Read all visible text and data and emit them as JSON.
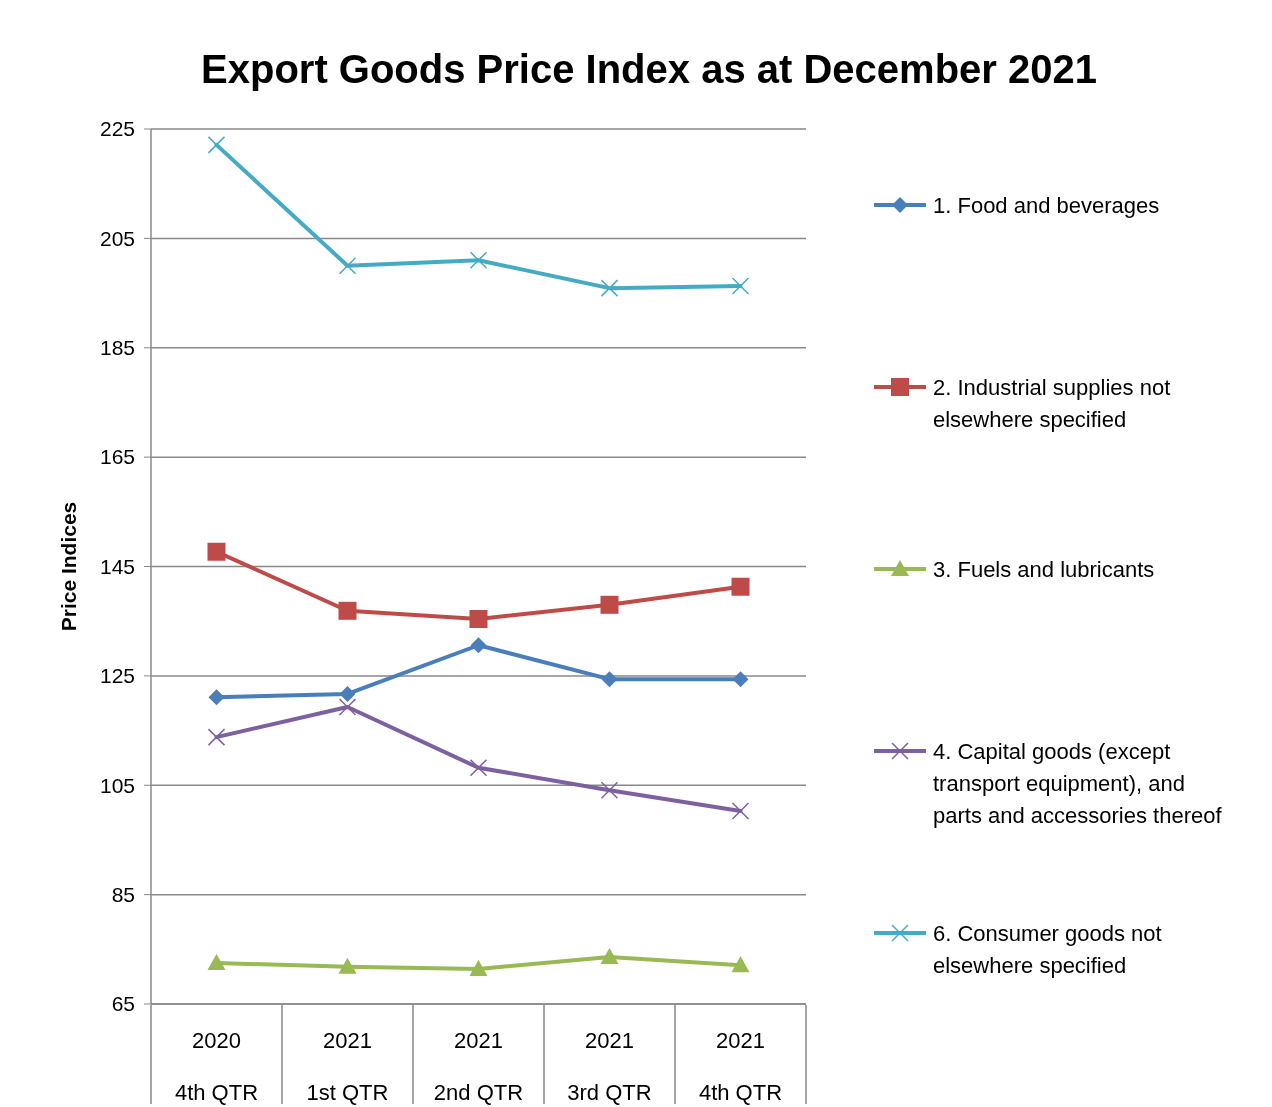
{
  "chart_data": {
    "type": "line",
    "title": "Export Goods Price Index as at December 2021",
    "ylabel": "Price Indices",
    "categories": [
      "2020\n4th QTR",
      "2021\n1st QTR",
      "2021\n2nd QTR",
      "2021\n3rd QTR",
      "2021\n4th QTR"
    ],
    "series": [
      {
        "name": "1. Food and beverages",
        "color": "#4a7ebb",
        "marker": "diamond",
        "values": [
          121.1,
          121.7,
          130.6,
          124.4,
          124.4
        ]
      },
      {
        "name": "2. Industrial supplies not elsewhere specified",
        "color": "#be4b48",
        "marker": "square",
        "values": [
          147.7,
          136.9,
          135.4,
          138.0,
          141.3
        ]
      },
      {
        "name": "3. Fuels and lubricants",
        "color": "#98b954",
        "marker": "triangle",
        "values": [
          72.5,
          71.8,
          71.4,
          73.6,
          72.1
        ]
      },
      {
        "name": "4. Capital goods (except transport equipment), and parts and accessories thereof",
        "color": "#7d60a0",
        "marker": "cross",
        "values": [
          113.8,
          119.3,
          108.2,
          104.1,
          100.3
        ]
      },
      {
        "name": "6. Consumer goods not elsewhere specified",
        "color": "#46aac5",
        "marker": "cross",
        "values": [
          222.1,
          200.0,
          201.0,
          195.9,
          196.3
        ]
      }
    ],
    "ylim": [
      65,
      225
    ],
    "yticks": [
      65,
      85,
      105,
      125,
      145,
      165,
      185,
      205,
      225
    ],
    "grid": "y",
    "legend": "right"
  }
}
